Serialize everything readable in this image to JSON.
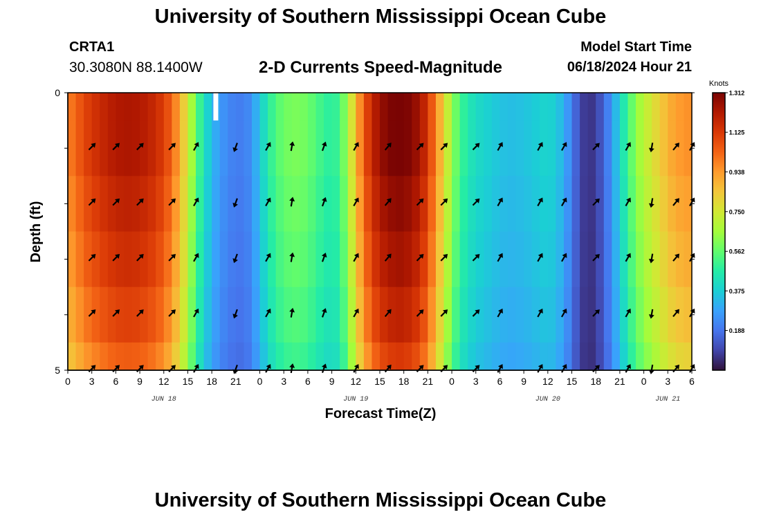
{
  "header": {
    "main_title": "University of Southern Mississippi Ocean Cube",
    "bottom_title": "University of Southern Mississippi Ocean Cube",
    "station_id": "CRTA1",
    "coordinates": "30.3080N  88.1400W",
    "model_start_label": "Model Start Time",
    "model_start_value": "06/18/2024 Hour 21"
  },
  "colors": {
    "palette": [
      "#30123b",
      "#4145ab",
      "#4675ed",
      "#39a2fc",
      "#1bcfd4",
      "#24eca6",
      "#61fc6c",
      "#a4fc3b",
      "#d1e834",
      "#f3c63a",
      "#fe9b2d",
      "#f36315",
      "#d93806",
      "#b11901",
      "#7a0403"
    ]
  },
  "chart_data": {
    "type": "heatmap",
    "title": "2-D Currents Speed-Magnitude",
    "xlabel": "Forecast Time(Z)",
    "ylabel": "Depth (ft)",
    "xlim": [
      0,
      78
    ],
    "ylim": [
      0,
      5
    ],
    "x_ticks": [
      0,
      3,
      6,
      9,
      12,
      15,
      18,
      21,
      24,
      27,
      30,
      33,
      36,
      39,
      42,
      45,
      48,
      51,
      54,
      57,
      60,
      63,
      66,
      69,
      72,
      75,
      78
    ],
    "x_tick_labels": [
      "0",
      "3",
      "6",
      "9",
      "12",
      "15",
      "18",
      "21",
      "0",
      "3",
      "6",
      "9",
      "12",
      "15",
      "18",
      "21",
      "0",
      "3",
      "6",
      "9",
      "12",
      "15",
      "18",
      "21",
      "0",
      "3",
      "6"
    ],
    "y_tick_labels": [
      {
        "depth": 0,
        "label": "0"
      },
      {
        "depth": 5,
        "label": "5"
      }
    ],
    "date_labels": [
      {
        "hour": 12,
        "label": "JUN 18"
      },
      {
        "hour": 36,
        "label": "JUN 19"
      },
      {
        "hour": 60,
        "label": "JUN 20"
      },
      {
        "hour": 75,
        "label": "JUN 21"
      }
    ],
    "colorbar": {
      "unit": "Knots",
      "min": 0.0,
      "max": 1.312,
      "tick_values": [
        1.312,
        1.125,
        0.938,
        0.75,
        0.562,
        0.375,
        0.188
      ],
      "tick_labels": [
        "1.312",
        "1.125",
        "0.938",
        "0.750",
        "0.562",
        "0.375",
        "0.188"
      ]
    },
    "speed_profile_hours": [
      0,
      1,
      2,
      3,
      4,
      5,
      6,
      7,
      8,
      9,
      10,
      11,
      12,
      13,
      14,
      15,
      16,
      17,
      18,
      19,
      20,
      21,
      22,
      23,
      24,
      25,
      26,
      27,
      28,
      29,
      30,
      31,
      32,
      33,
      34,
      35,
      36,
      37,
      38,
      39,
      40,
      41,
      42,
      43,
      44,
      45,
      46,
      47,
      48,
      49,
      50,
      51,
      52,
      53,
      54,
      55,
      56,
      57,
      58,
      59,
      60,
      61,
      62,
      63,
      64,
      65,
      66,
      67,
      68,
      69,
      70,
      71,
      72,
      73,
      74,
      75,
      76,
      77,
      78
    ],
    "speed_profile_knots": [
      0.95,
      1.0,
      1.06,
      1.1,
      1.13,
      1.16,
      1.18,
      1.19,
      1.19,
      1.18,
      1.16,
      1.13,
      1.08,
      1.0,
      0.88,
      0.72,
      0.55,
      0.42,
      0.32,
      0.26,
      0.22,
      0.2,
      0.2,
      0.24,
      0.35,
      0.45,
      0.52,
      0.56,
      0.58,
      0.58,
      0.56,
      0.52,
      0.48,
      0.46,
      0.5,
      0.64,
      0.85,
      1.02,
      1.14,
      1.22,
      1.26,
      1.28,
      1.28,
      1.25,
      1.2,
      1.1,
      0.95,
      0.78,
      0.62,
      0.5,
      0.44,
      0.4,
      0.38,
      0.36,
      0.34,
      0.33,
      0.33,
      0.34,
      0.35,
      0.37,
      0.38,
      0.36,
      0.3,
      0.2,
      0.1,
      0.05,
      0.08,
      0.15,
      0.26,
      0.38,
      0.5,
      0.6,
      0.68,
      0.74,
      0.8,
      0.86,
      0.9,
      0.92,
      0.93
    ],
    "depth_rows_ft": [
      0,
      1,
      2,
      3,
      4,
      5
    ],
    "depth_row_factor": [
      1.03,
      1.03,
      1.0,
      0.97,
      0.93,
      0.88
    ],
    "vector_depths_ft": [
      1,
      2,
      3,
      4,
      5
    ],
    "vector_hours": [
      3,
      6,
      9,
      13,
      16,
      21,
      25,
      28,
      32,
      36,
      40,
      44,
      47,
      51,
      54,
      59,
      62,
      66,
      70,
      73,
      76,
      78
    ],
    "vector_direction_deg": [
      315,
      315,
      315,
      315,
      300,
      110,
      300,
      280,
      290,
      300,
      310,
      315,
      315,
      315,
      300,
      300,
      300,
      315,
      300,
      100,
      310,
      300
    ],
    "missing_data": {
      "hour": 18.5,
      "depth_from": 0,
      "depth_to": 0.5,
      "color": "#ffffff"
    }
  }
}
